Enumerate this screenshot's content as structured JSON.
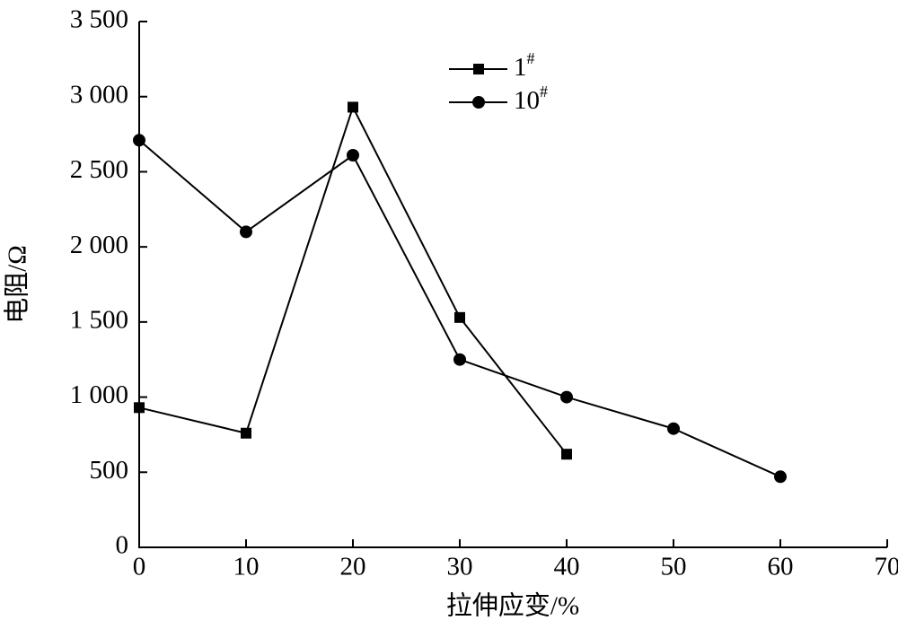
{
  "chart_data": {
    "type": "line",
    "x_label": "拉伸应变/%",
    "y_label": "电阻/Ω",
    "xlim": [
      0,
      70
    ],
    "xticks": [
      0,
      10,
      20,
      30,
      40,
      50,
      60,
      70
    ],
    "ylim": [
      0,
      3500
    ],
    "yticks": [
      0,
      500,
      {
        "value": 1000,
        "label": "1 000"
      },
      {
        "value": 1500,
        "label": "1 500"
      },
      {
        "value": 2000,
        "label": "2 000"
      },
      {
        "value": 2500,
        "label": "2 500"
      },
      {
        "value": 3000,
        "label": "3 000"
      },
      {
        "value": 3500,
        "label": "3 500"
      }
    ],
    "grid": false,
    "legend": "top",
    "series": [
      {
        "name": "1#",
        "color": "#000000",
        "marker": "square",
        "x": [
          0,
          10,
          20,
          30,
          40
        ],
        "values": [
          930,
          760,
          2930,
          1530,
          620
        ]
      },
      {
        "name": "10#",
        "color": "#000000",
        "marker": "circle",
        "x": [
          0,
          10,
          20,
          30,
          40,
          50,
          60
        ],
        "values": [
          2710,
          2100,
          2610,
          1250,
          1000,
          790,
          470
        ]
      }
    ]
  }
}
